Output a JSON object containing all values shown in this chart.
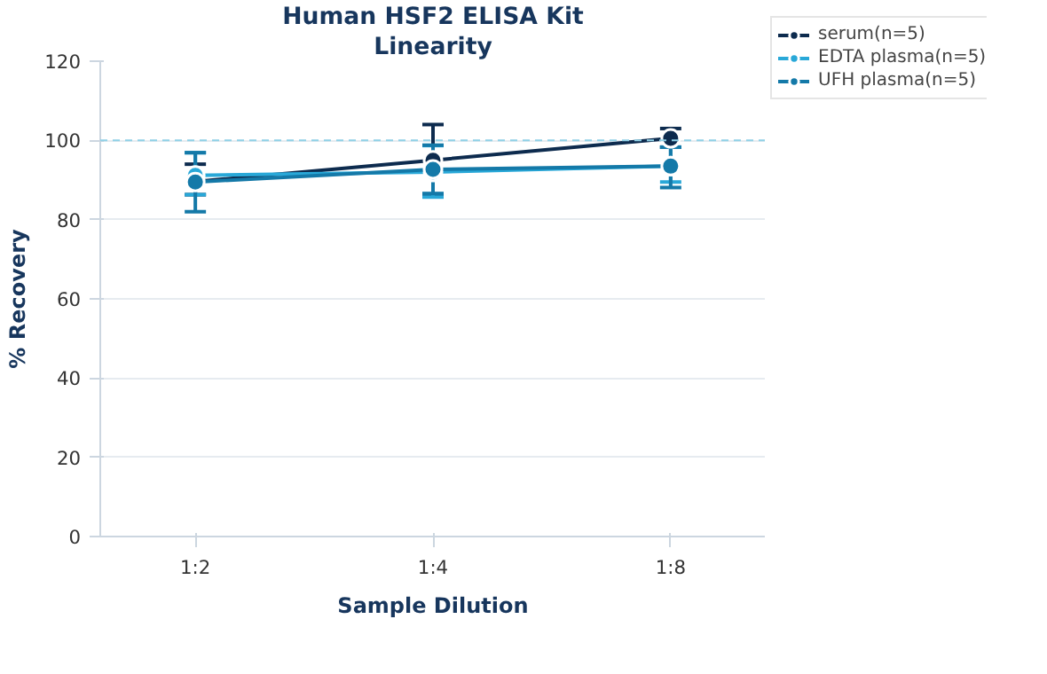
{
  "chart_data": {
    "type": "line",
    "title": "Human HSF2 ELISA Kit",
    "subtitle": "Linearity",
    "xlabel": "Sample Dilution",
    "ylabel": "% Recovery",
    "categories": [
      "1:2",
      "1:4",
      "1:8"
    ],
    "series": [
      {
        "name": "serum(n=5)",
        "color": "#0d2b4e",
        "values": [
          89.6,
          95,
          100.5
        ],
        "errors": [
          [
            86.3,
            94
          ],
          [
            86,
            104
          ],
          [
            98.3,
            103
          ]
        ]
      },
      {
        "name": "EDTA plasma(n=5)",
        "color": "#29a8d8",
        "values": [
          91.2,
          92,
          93.5
        ],
        "errors": [
          [
            86.3,
            96.9
          ],
          [
            85.7,
            98.7
          ],
          [
            89.5,
            98.3
          ]
        ]
      },
      {
        "name": "UFH plasma(n=5)",
        "color": "#1479a8",
        "values": [
          89.5,
          92.7,
          93.5
        ],
        "errors": [
          [
            82,
            96.9
          ],
          [
            86.6,
            98.8
          ],
          [
            88.1,
            98.3
          ]
        ]
      }
    ],
    "ylim": [
      0,
      120
    ],
    "yticks": [
      0,
      20,
      40,
      60,
      80,
      100,
      120
    ],
    "ref_lines": [
      {
        "axis": "y",
        "value": 100,
        "label": null,
        "color": "#8fd0e6",
        "line_style": "dashed"
      }
    ],
    "grid": "y",
    "legend": "top right",
    "marker": "circle",
    "line_style": "solid"
  }
}
